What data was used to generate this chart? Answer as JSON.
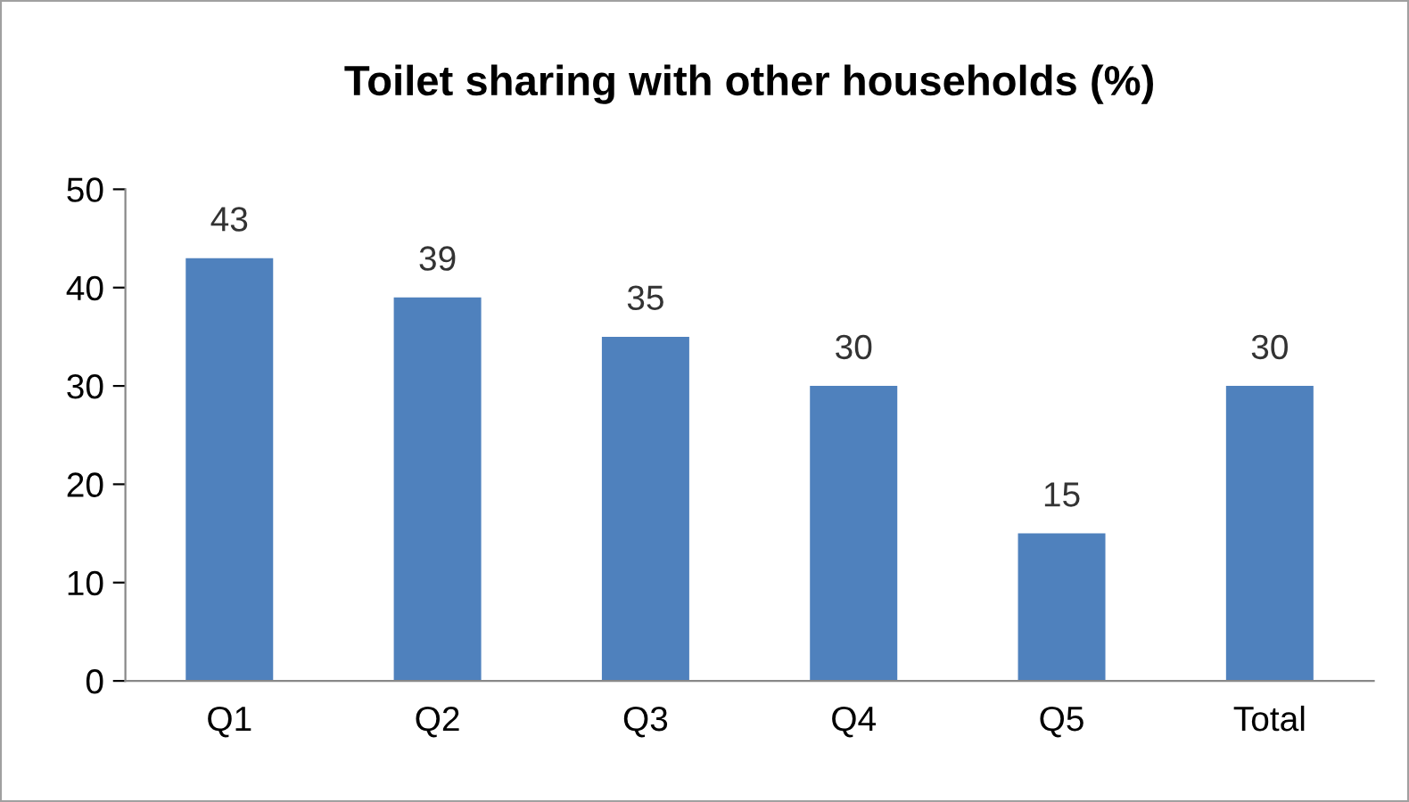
{
  "chart_data": {
    "type": "bar",
    "title": "Toilet sharing with other households (%)",
    "categories": [
      "Q1",
      "Q2",
      "Q3",
      "Q4",
      "Q5",
      "Total"
    ],
    "values": [
      43,
      39,
      35,
      30,
      15,
      30
    ],
    "color": "#4f81bd",
    "ylim": [
      0,
      50
    ],
    "yticks": [
      0,
      10,
      20,
      30,
      40,
      50
    ],
    "grid": false,
    "data_labels": true
  }
}
